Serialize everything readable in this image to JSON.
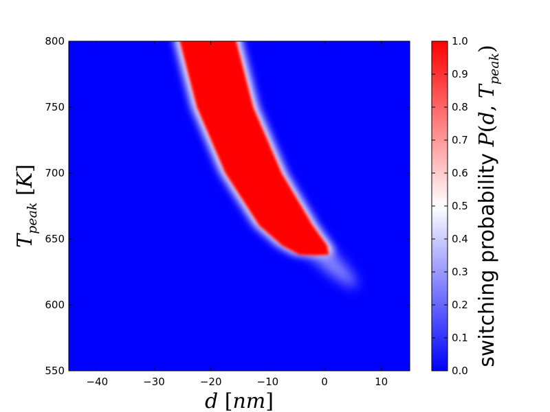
{
  "chart_data": {
    "type": "heatmap",
    "title": "",
    "xlabel": "d [nm]",
    "ylabel": "T_peak [K]",
    "xlim": [
      -45,
      15
    ],
    "ylim": [
      550,
      800
    ],
    "x_ticks": [
      -40,
      -30,
      -20,
      -10,
      0,
      10
    ],
    "x_tick_labels": [
      "−40",
      "−30",
      "−20",
      "−10",
      "0",
      "10"
    ],
    "y_ticks": [
      550,
      600,
      650,
      700,
      750,
      800
    ],
    "y_tick_labels": [
      "550",
      "600",
      "650",
      "700",
      "750",
      "800"
    ],
    "grid": false,
    "colormap": {
      "name": "bwr",
      "low_color": "#0000ff",
      "mid_color": "#ffffff",
      "high_color": "#ff0000"
    },
    "colorbar": {
      "label": "switching probability P(d, T_peak)",
      "label_text": "switching probability",
      "label_math": "P(d, T_peak)",
      "range": [
        0.0,
        1.0
      ],
      "ticks": [
        0.0,
        0.1,
        0.2,
        0.3,
        0.4,
        0.5,
        0.6,
        0.7,
        0.8,
        0.9,
        1.0
      ],
      "tick_labels": [
        "0.0",
        "0.1",
        "0.2",
        "0.3",
        "0.4",
        "0.5",
        "0.6",
        "0.7",
        "0.8",
        "0.9",
        "1.0"
      ]
    },
    "switching_region": {
      "description_values": "P = 1 inside band, P = 0 outside",
      "left_edge": [
        {
          "T": 800,
          "d": -25.5
        },
        {
          "T": 750,
          "d": -22.5
        },
        {
          "T": 700,
          "d": -17.5
        },
        {
          "T": 660,
          "d": -11.5
        },
        {
          "T": 645,
          "d": -7.5
        },
        {
          "T": 638,
          "d": -4.5
        }
      ],
      "right_edge": [
        {
          "T": 800,
          "d": -15.5
        },
        {
          "T": 750,
          "d": -12.5
        },
        {
          "T": 700,
          "d": -7.5
        },
        {
          "T": 660,
          "d": -2.0
        },
        {
          "T": 645,
          "d": 0.5
        },
        {
          "T": 638,
          "d": 0.8
        }
      ],
      "fade_tail": {
        "T_min": 615,
        "d_center": 5
      }
    }
  }
}
